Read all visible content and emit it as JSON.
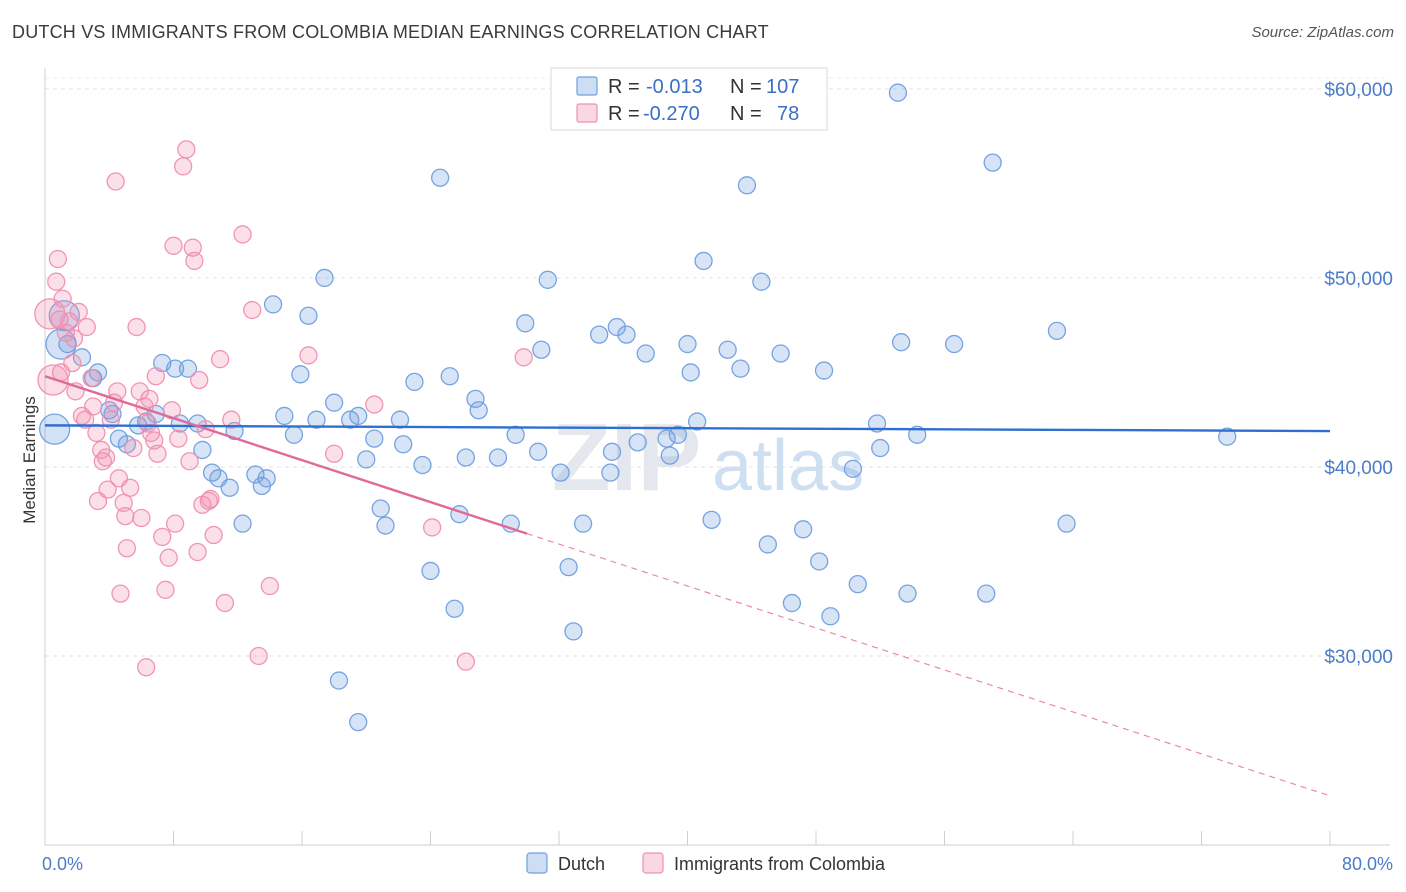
{
  "title": "DUTCH VS IMMIGRANTS FROM COLOMBIA MEDIAN EARNINGS CORRELATION CHART",
  "source": "Source: ZipAtlas.com",
  "watermark": {
    "zip": "ZIP",
    "atlas": "atlas"
  },
  "legend": {
    "rows": [
      {
        "r_label": "R =",
        "r_value": "-0.013",
        "n_label": "N =",
        "n_value": "107",
        "color": "#6f9fe0"
      },
      {
        "r_label": "R =",
        "r_value": "-0.270",
        "n_label": "N =",
        "n_value": "78",
        "color": "#f08fb0"
      }
    ]
  },
  "bottom_legend": [
    {
      "label": "Dutch",
      "color": "#6f9fe0"
    },
    {
      "label": "Immigrants from Colombia",
      "color": "#f08fb0"
    }
  ],
  "chart_data": {
    "type": "scatter",
    "xlabel": "",
    "ylabel": "Median Earnings",
    "xlim": [
      0,
      80
    ],
    "ylim": [
      20000,
      61000
    ],
    "x_tick_labels": [
      "0.0%",
      "80.0%"
    ],
    "y_tick_labels": [
      "$30,000",
      "$40,000",
      "$50,000",
      "$60,000"
    ],
    "y_ticks": [
      30000,
      40000,
      50000,
      60000
    ],
    "grid": "horizontal dashed",
    "legend_placement": "top-center",
    "series": [
      {
        "name": "Dutch",
        "color": "#6f9fe0",
        "trend": {
          "x0": 0,
          "y0": 42200,
          "x1": 80,
          "y1": 41900,
          "solid_until": 80
        },
        "points": [
          [
            0.6,
            42000
          ],
          [
            1.0,
            46500
          ],
          [
            1.2,
            48000
          ],
          [
            1.4,
            46500
          ],
          [
            2.3,
            45800
          ],
          [
            3.0,
            44700
          ],
          [
            3.3,
            45000
          ],
          [
            4.0,
            43000
          ],
          [
            4.2,
            42800
          ],
          [
            4.6,
            41500
          ],
          [
            5.1,
            41200
          ],
          [
            5.8,
            42200
          ],
          [
            6.3,
            42400
          ],
          [
            6.9,
            42800
          ],
          [
            7.3,
            45500
          ],
          [
            8.1,
            45200
          ],
          [
            8.4,
            42300
          ],
          [
            8.9,
            45200
          ],
          [
            9.5,
            42300
          ],
          [
            9.8,
            40900
          ],
          [
            10.4,
            39700
          ],
          [
            10.8,
            39400
          ],
          [
            11.5,
            38900
          ],
          [
            11.8,
            41900
          ],
          [
            12.3,
            37000
          ],
          [
            13.1,
            39600
          ],
          [
            13.5,
            39000
          ],
          [
            13.8,
            39400
          ],
          [
            14.2,
            48600
          ],
          [
            14.9,
            42700
          ],
          [
            15.5,
            41700
          ],
          [
            15.9,
            44900
          ],
          [
            16.4,
            48000
          ],
          [
            16.9,
            42500
          ],
          [
            17.4,
            50000
          ],
          [
            18.0,
            43400
          ],
          [
            18.3,
            28700
          ],
          [
            19.0,
            42500
          ],
          [
            19.5,
            42700
          ],
          [
            19.5,
            26500
          ],
          [
            20.0,
            40400
          ],
          [
            20.5,
            41500
          ],
          [
            20.9,
            37800
          ],
          [
            21.2,
            36900
          ],
          [
            22.1,
            42500
          ],
          [
            22.3,
            41200
          ],
          [
            23.0,
            44500
          ],
          [
            23.5,
            40100
          ],
          [
            24.0,
            34500
          ],
          [
            24.6,
            55300
          ],
          [
            25.2,
            44800
          ],
          [
            25.5,
            32500
          ],
          [
            25.8,
            37500
          ],
          [
            26.2,
            40500
          ],
          [
            26.8,
            43600
          ],
          [
            27.0,
            43000
          ],
          [
            28.2,
            40500
          ],
          [
            29.0,
            37000
          ],
          [
            29.3,
            41700
          ],
          [
            29.9,
            47600
          ],
          [
            30.7,
            40800
          ],
          [
            30.9,
            46200
          ],
          [
            31.3,
            49900
          ],
          [
            32.1,
            39700
          ],
          [
            32.6,
            34700
          ],
          [
            32.9,
            31300
          ],
          [
            33.5,
            37000
          ],
          [
            34.5,
            47000
          ],
          [
            35.2,
            39700
          ],
          [
            35.3,
            40800
          ],
          [
            35.6,
            47400
          ],
          [
            36.2,
            47000
          ],
          [
            36.9,
            41300
          ],
          [
            37.4,
            46000
          ],
          [
            38.7,
            41500
          ],
          [
            38.9,
            40600
          ],
          [
            39.4,
            41700
          ],
          [
            40.0,
            46500
          ],
          [
            40.2,
            45000
          ],
          [
            40.6,
            42400
          ],
          [
            41.0,
            50900
          ],
          [
            41.5,
            37200
          ],
          [
            42.5,
            46200
          ],
          [
            43.3,
            45200
          ],
          [
            43.7,
            54900
          ],
          [
            44.6,
            49800
          ],
          [
            45.0,
            35900
          ],
          [
            45.8,
            46000
          ],
          [
            46.5,
            32800
          ],
          [
            47.2,
            36700
          ],
          [
            48.2,
            35000
          ],
          [
            48.5,
            45100
          ],
          [
            48.9,
            32100
          ],
          [
            50.3,
            39900
          ],
          [
            50.6,
            33800
          ],
          [
            51.8,
            42300
          ],
          [
            52.0,
            41000
          ],
          [
            53.1,
            59800
          ],
          [
            53.3,
            46600
          ],
          [
            53.7,
            33300
          ],
          [
            54.3,
            41700
          ],
          [
            56.6,
            46500
          ],
          [
            58.6,
            33300
          ],
          [
            59.0,
            56100
          ],
          [
            63.0,
            47200
          ],
          [
            63.6,
            37000
          ],
          [
            73.6,
            41600
          ]
        ],
        "big_points": [
          [
            0.6,
            42000
          ],
          [
            1.0,
            46500
          ],
          [
            1.2,
            48000
          ]
        ]
      },
      {
        "name": "Immigrants from Colombia",
        "color": "#f08fb0",
        "trend": {
          "x0": 0,
          "y0": 44800,
          "x1": 80,
          "y1": 22600,
          "solid_until": 30
        },
        "points": [
          [
            0.3,
            48100
          ],
          [
            0.5,
            44600
          ],
          [
            0.7,
            49800
          ],
          [
            0.8,
            51000
          ],
          [
            0.9,
            47800
          ],
          [
            1.0,
            45000
          ],
          [
            1.1,
            48900
          ],
          [
            1.3,
            47100
          ],
          [
            1.5,
            47700
          ],
          [
            1.7,
            45500
          ],
          [
            1.8,
            46800
          ],
          [
            1.9,
            44000
          ],
          [
            2.1,
            48200
          ],
          [
            2.3,
            42700
          ],
          [
            2.5,
            42500
          ],
          [
            2.6,
            47400
          ],
          [
            2.9,
            44700
          ],
          [
            3.0,
            43200
          ],
          [
            3.2,
            41800
          ],
          [
            3.3,
            38200
          ],
          [
            3.5,
            40900
          ],
          [
            3.6,
            40300
          ],
          [
            3.8,
            40500
          ],
          [
            3.9,
            38800
          ],
          [
            4.1,
            42500
          ],
          [
            4.3,
            43400
          ],
          [
            4.4,
            55100
          ],
          [
            4.5,
            44000
          ],
          [
            4.6,
            39400
          ],
          [
            4.7,
            33300
          ],
          [
            4.9,
            38100
          ],
          [
            5.0,
            37400
          ],
          [
            5.1,
            35700
          ],
          [
            5.3,
            38900
          ],
          [
            5.5,
            41000
          ],
          [
            5.7,
            47400
          ],
          [
            5.9,
            44000
          ],
          [
            6.0,
            37300
          ],
          [
            6.2,
            43200
          ],
          [
            6.3,
            29400
          ],
          [
            6.4,
            42300
          ],
          [
            6.5,
            43600
          ],
          [
            6.6,
            41800
          ],
          [
            6.8,
            41400
          ],
          [
            6.9,
            44800
          ],
          [
            7.0,
            40700
          ],
          [
            7.3,
            36300
          ],
          [
            7.5,
            33500
          ],
          [
            7.7,
            35200
          ],
          [
            7.9,
            43000
          ],
          [
            8.0,
            51700
          ],
          [
            8.1,
            37000
          ],
          [
            8.3,
            41500
          ],
          [
            8.6,
            55900
          ],
          [
            8.8,
            56800
          ],
          [
            9.0,
            40300
          ],
          [
            9.2,
            51600
          ],
          [
            9.3,
            50900
          ],
          [
            9.5,
            35500
          ],
          [
            9.6,
            44600
          ],
          [
            9.8,
            38000
          ],
          [
            10.0,
            42000
          ],
          [
            10.2,
            38200
          ],
          [
            10.3,
            38300
          ],
          [
            10.5,
            36400
          ],
          [
            10.9,
            45700
          ],
          [
            11.2,
            32800
          ],
          [
            11.6,
            42500
          ],
          [
            12.3,
            52300
          ],
          [
            12.9,
            48300
          ],
          [
            13.3,
            30000
          ],
          [
            14.0,
            33700
          ],
          [
            16.4,
            45900
          ],
          [
            18.0,
            40700
          ],
          [
            20.5,
            43300
          ],
          [
            24.1,
            36800
          ],
          [
            26.2,
            29700
          ],
          [
            29.8,
            45800
          ]
        ],
        "big_points": [
          [
            0.5,
            44600
          ],
          [
            0.3,
            48100
          ]
        ]
      }
    ]
  }
}
